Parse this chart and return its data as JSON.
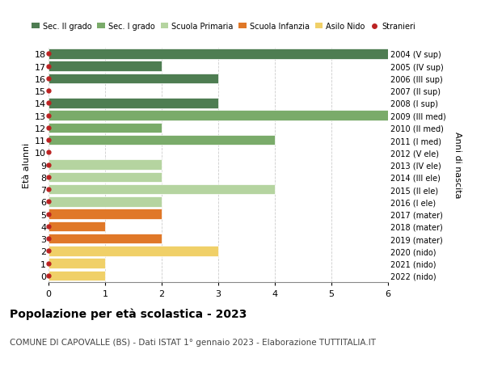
{
  "ages": [
    18,
    17,
    16,
    15,
    14,
    13,
    12,
    11,
    10,
    9,
    8,
    7,
    6,
    5,
    4,
    3,
    2,
    1,
    0
  ],
  "right_labels": [
    "2004 (V sup)",
    "2005 (IV sup)",
    "2006 (III sup)",
    "2007 (II sup)",
    "2008 (I sup)",
    "2009 (III med)",
    "2010 (II med)",
    "2011 (I med)",
    "2012 (V ele)",
    "2013 (IV ele)",
    "2014 (III ele)",
    "2015 (II ele)",
    "2016 (I ele)",
    "2017 (mater)",
    "2018 (mater)",
    "2019 (mater)",
    "2020 (nido)",
    "2021 (nido)",
    "2022 (nido)"
  ],
  "values": [
    6,
    2,
    3,
    0,
    3,
    6,
    2,
    4,
    0,
    2,
    2,
    4,
    2,
    2,
    1,
    2,
    3,
    1,
    1
  ],
  "colors": [
    "#4e7d52",
    "#4e7d52",
    "#4e7d52",
    "#4e7d52",
    "#4e7d52",
    "#7aab6a",
    "#7aab6a",
    "#7aab6a",
    "#b5d4a0",
    "#b5d4a0",
    "#b5d4a0",
    "#b5d4a0",
    "#b5d4a0",
    "#e07828",
    "#e07828",
    "#e07828",
    "#f0d068",
    "#f0d068",
    "#f0d068"
  ],
  "legend_labels": [
    "Sec. II grado",
    "Sec. I grado",
    "Scuola Primaria",
    "Scuola Infanzia",
    "Asilo Nido",
    "Stranieri"
  ],
  "legend_colors": [
    "#4e7d52",
    "#7aab6a",
    "#b5d4a0",
    "#e07828",
    "#f0d068",
    "#bb2222"
  ],
  "dot_color": "#bb2222",
  "title": "Popolazione per età scolastica - 2023",
  "subtitle": "COMUNE DI CAPOVALLE (BS) - Dati ISTAT 1° gennaio 2023 - Elaborazione TUTTITALIA.IT",
  "ylabel_left": "Età alunni",
  "ylabel_right": "Anni di nascita",
  "xlim": [
    0,
    6
  ],
  "ylim_min": -0.5,
  "ylim_max": 18.5,
  "background_color": "#ffffff",
  "grid_color": "#cccccc",
  "bar_height": 0.82
}
